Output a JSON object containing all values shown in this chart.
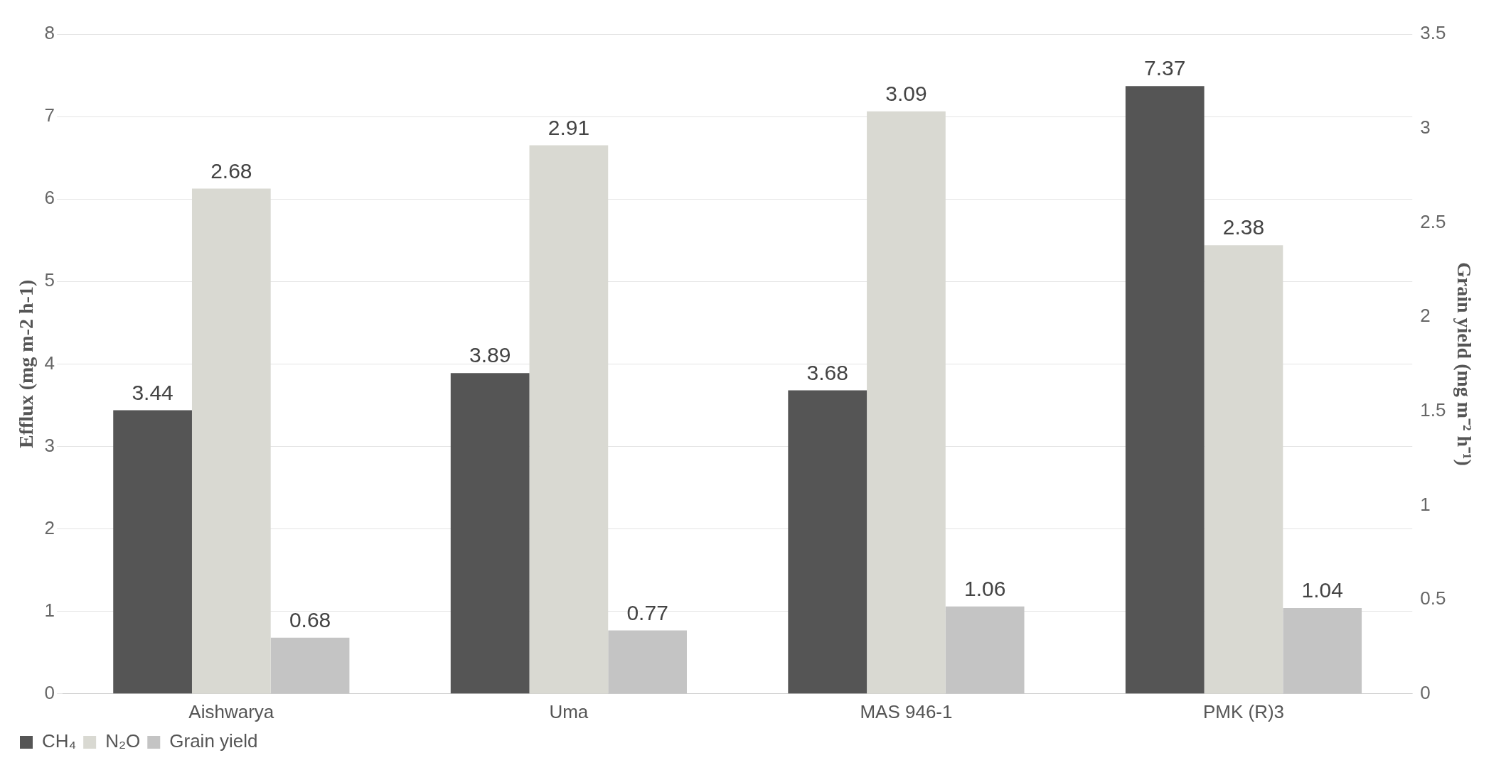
{
  "chart_data": {
    "type": "bar",
    "categories": [
      "Aishwarya",
      "Uma",
      "MAS 946-1",
      "PMK (R)3"
    ],
    "series": [
      {
        "name": "CH₄",
        "color": "#555555",
        "values": [
          3.44,
          3.89,
          3.68,
          7.37
        ]
      },
      {
        "name": "N₂O",
        "color": "#d9d9d2",
        "axis": "y2",
        "values": [
          2.68,
          2.91,
          3.09,
          2.38
        ]
      },
      {
        "name": "Grain yield",
        "color": "#c4c4c4",
        "values": [
          0.68,
          0.77,
          1.06,
          1.04
        ]
      }
    ],
    "ylabel": "Efflux (mg m-2 h-1)",
    "y2label": "Grain yield (mg m⁻² h⁻¹)",
    "ylim": [
      0,
      8
    ],
    "yticks": [
      0,
      1,
      2,
      3,
      4,
      5,
      6,
      7,
      8
    ],
    "y2lim": [
      0,
      3.5
    ],
    "y2ticks": [
      0,
      0.5,
      1,
      1.5,
      2,
      2.5,
      3,
      3.5
    ],
    "grid": "y",
    "legend": "bottom left",
    "data_labels": true
  }
}
